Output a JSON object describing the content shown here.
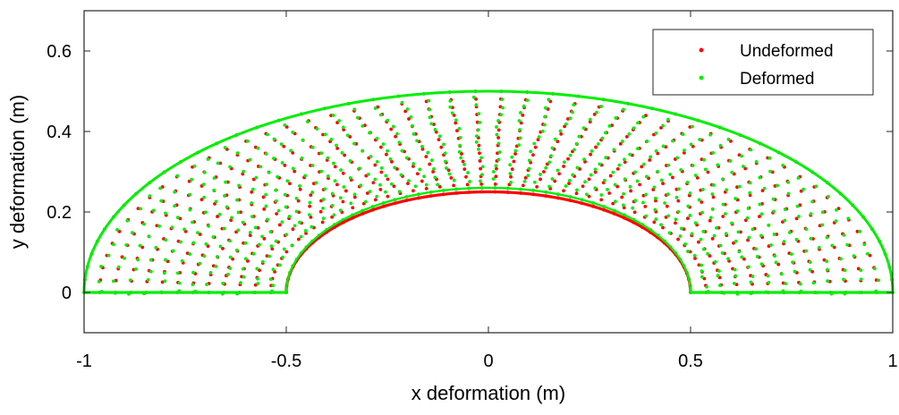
{
  "chart_data": {
    "type": "scatter",
    "title": "",
    "xlabel": "x deformation (m)",
    "ylabel": "y deformation (m)",
    "xlim": [
      -1,
      1
    ],
    "ylim": [
      -0.1,
      0.7
    ],
    "xticks": [
      -1,
      -0.5,
      0,
      0.5,
      1
    ],
    "xtick_labels": [
      "-1",
      "-0.5",
      "0",
      "0.5",
      "1"
    ],
    "yticks": [
      0,
      0.2,
      0.4,
      0.6
    ],
    "ytick_labels": [
      "0",
      "0.2",
      "0.4",
      "0.6"
    ],
    "grid": false,
    "legend_position": "top-right",
    "geometry": {
      "outer_semiaxis_x": 1.0,
      "outer_semiaxis_y": 0.5,
      "inner_undeformed_semiaxis_x": 0.5,
      "inner_undeformed_semiaxis_y": 0.25,
      "inner_deformed_semiaxis_x": 0.5,
      "inner_deformed_semiaxis_y": 0.26
    },
    "series": [
      {
        "name": "Undeformed",
        "color": "#ff0000",
        "marker": "dot"
      },
      {
        "name": "Deformed",
        "color": "#00ee00",
        "marker": "dot"
      }
    ]
  }
}
